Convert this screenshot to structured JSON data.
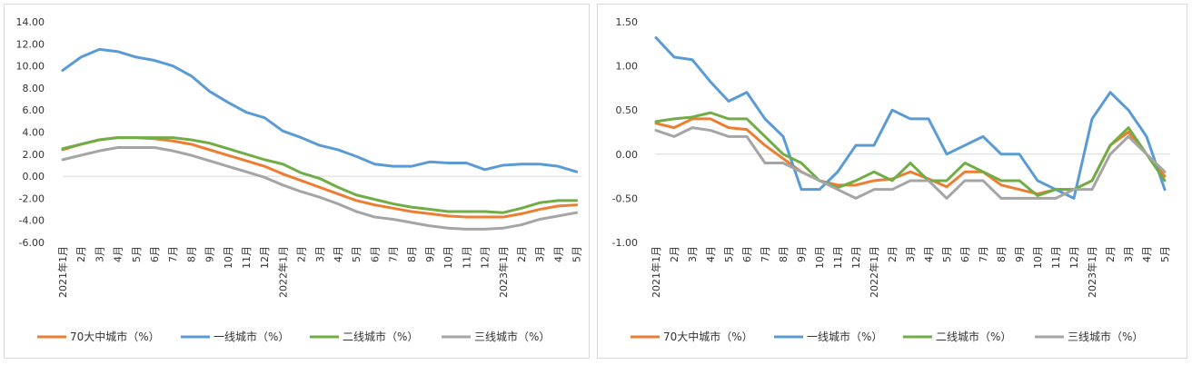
{
  "chart_data": [
    {
      "type": "line",
      "x": [
        "2021年1月",
        "2月",
        "3月",
        "4月",
        "5月",
        "6月",
        "7月",
        "8月",
        "9月",
        "10月",
        "11月",
        "12月",
        "2022年1月",
        "2月",
        "3月",
        "4月",
        "5月",
        "6月",
        "7月",
        "8月",
        "9月",
        "10月",
        "11月",
        "12月",
        "2023年1月",
        "2月",
        "3月",
        "4月",
        "5月"
      ],
      "ylim": [
        -6,
        14
      ],
      "yticks": [
        "14.00",
        "12.00",
        "10.00",
        "8.00",
        "6.00",
        "4.00",
        "2.00",
        "0.00",
        "-2.00",
        "-4.00",
        "-6.00"
      ],
      "grid": false,
      "legend_position": "bottom",
      "series": [
        {
          "name": "70大中城市（%）",
          "color": "#ed7d31",
          "values": [
            2.4,
            2.9,
            3.3,
            3.5,
            3.5,
            3.4,
            3.2,
            2.9,
            2.4,
            1.9,
            1.4,
            0.9,
            0.2,
            -0.4,
            -1.0,
            -1.6,
            -2.2,
            -2.6,
            -2.9,
            -3.2,
            -3.4,
            -3.6,
            -3.7,
            -3.7,
            -3.7,
            -3.4,
            -3.0,
            -2.7,
            -2.6
          ]
        },
        {
          "name": "一线城市（%）",
          "color": "#5b9bd5",
          "values": [
            9.6,
            10.8,
            11.5,
            11.3,
            10.8,
            10.5,
            10.0,
            9.1,
            7.7,
            6.7,
            5.8,
            5.3,
            4.1,
            3.5,
            2.8,
            2.4,
            1.8,
            1.1,
            0.9,
            0.9,
            1.3,
            1.2,
            1.2,
            0.6,
            1.0,
            1.1,
            1.1,
            0.9,
            0.4
          ]
        },
        {
          "name": "二线城市（%）",
          "color": "#70ad47",
          "values": [
            2.5,
            2.9,
            3.3,
            3.5,
            3.5,
            3.5,
            3.5,
            3.3,
            3.0,
            2.5,
            2.0,
            1.5,
            1.1,
            0.3,
            -0.2,
            -1.0,
            -1.7,
            -2.1,
            -2.5,
            -2.8,
            -3.0,
            -3.2,
            -3.2,
            -3.2,
            -3.3,
            -2.9,
            -2.4,
            -2.2,
            -2.2
          ]
        },
        {
          "name": "三线城市（%）",
          "color": "#a5a5a5",
          "values": [
            1.5,
            1.9,
            2.3,
            2.6,
            2.6,
            2.6,
            2.3,
            1.9,
            1.4,
            0.9,
            0.4,
            -0.1,
            -0.8,
            -1.4,
            -1.9,
            -2.5,
            -3.2,
            -3.7,
            -3.9,
            -4.2,
            -4.5,
            -4.7,
            -4.8,
            -4.8,
            -4.7,
            -4.4,
            -3.9,
            -3.6,
            -3.3
          ]
        }
      ]
    },
    {
      "type": "line",
      "x": [
        "2021年1月",
        "2月",
        "3月",
        "4月",
        "5月",
        "6月",
        "7月",
        "8月",
        "9月",
        "10月",
        "11月",
        "12月",
        "2022年1月",
        "2月",
        "3月",
        "4月",
        "5月",
        "6月",
        "7月",
        "8月",
        "9月",
        "10月",
        "11月",
        "12月",
        "2023年1月",
        "2月",
        "3月",
        "4月",
        "5月"
      ],
      "ylim": [
        -1.0,
        1.5
      ],
      "yticks": [
        "1.50",
        "1.00",
        "0.50",
        "0.00",
        "-0.50",
        "-1.00"
      ],
      "grid": false,
      "legend_position": "bottom",
      "series": [
        {
          "name": "70大中城市（%）",
          "color": "#ed7d31",
          "values": [
            0.35,
            0.3,
            0.4,
            0.4,
            0.3,
            0.28,
            0.1,
            -0.05,
            -0.2,
            -0.3,
            -0.35,
            -0.35,
            -0.3,
            -0.28,
            -0.2,
            -0.28,
            -0.37,
            -0.2,
            -0.2,
            -0.35,
            -0.4,
            -0.45,
            -0.4,
            -0.4,
            -0.3,
            0.1,
            0.25,
            0.0,
            -0.25
          ]
        },
        {
          "name": "一线城市（%）",
          "color": "#5b9bd5",
          "values": [
            1.32,
            1.1,
            1.07,
            0.82,
            0.6,
            0.7,
            0.4,
            0.2,
            -0.4,
            -0.4,
            -0.2,
            0.1,
            0.1,
            0.5,
            0.4,
            0.4,
            0.0,
            0.1,
            0.2,
            0.0,
            0.0,
            -0.3,
            -0.4,
            -0.5,
            0.4,
            0.7,
            0.5,
            0.2,
            -0.4
          ]
        },
        {
          "name": "二线城市（%）",
          "color": "#70ad47",
          "values": [
            0.37,
            0.4,
            0.42,
            0.47,
            0.4,
            0.4,
            0.2,
            0.0,
            -0.1,
            -0.3,
            -0.38,
            -0.3,
            -0.2,
            -0.3,
            -0.1,
            -0.3,
            -0.3,
            -0.1,
            -0.2,
            -0.3,
            -0.3,
            -0.47,
            -0.4,
            -0.4,
            -0.3,
            0.1,
            0.3,
            0.0,
            -0.3
          ]
        },
        {
          "name": "三线城市（%）",
          "color": "#a5a5a5",
          "values": [
            0.27,
            0.2,
            0.3,
            0.27,
            0.2,
            0.2,
            -0.1,
            -0.1,
            -0.2,
            -0.3,
            -0.4,
            -0.5,
            -0.4,
            -0.4,
            -0.3,
            -0.3,
            -0.5,
            -0.3,
            -0.3,
            -0.5,
            -0.5,
            -0.5,
            -0.5,
            -0.4,
            -0.4,
            0.0,
            0.2,
            0.0,
            -0.2
          ]
        }
      ]
    }
  ]
}
